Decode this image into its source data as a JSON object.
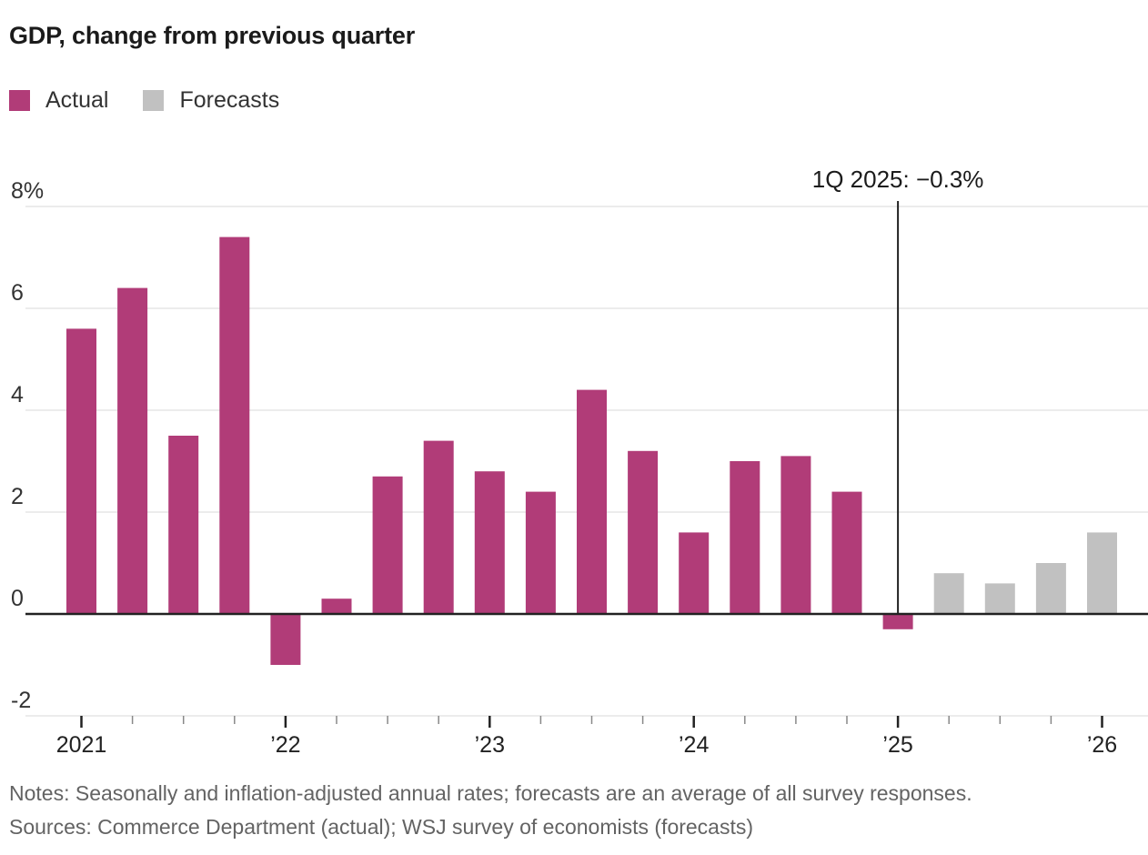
{
  "title": "GDP, change from previous quarter",
  "legend": {
    "actual": {
      "label": "Actual",
      "color": "#b13c78"
    },
    "forecasts": {
      "label": "Forecasts",
      "color": "#c1c1c1"
    }
  },
  "annotation": "1Q 2025: −0.3%",
  "footer": {
    "notes": "Notes: Seasonally and inflation-adjusted annual rates; forecasts are an average of all survey responses.",
    "sources": "Sources: Commerce Department (actual); WSJ survey of economists (forecasts)"
  },
  "chart_data": {
    "type": "bar",
    "title": "GDP, change from previous quarter",
    "x": [
      "2021 Q1",
      "2021 Q2",
      "2021 Q3",
      "2021 Q4",
      "2022 Q1",
      "2022 Q2",
      "2022 Q3",
      "2022 Q4",
      "2023 Q1",
      "2023 Q2",
      "2023 Q3",
      "2023 Q4",
      "2024 Q1",
      "2024 Q2",
      "2024 Q3",
      "2024 Q4",
      "2025 Q1",
      "2025 Q2",
      "2025 Q3",
      "2025 Q4",
      "2026 Q1"
    ],
    "series": [
      {
        "name": "Actual",
        "color": "#b13c78",
        "values": [
          5.6,
          6.4,
          3.5,
          7.4,
          -1.0,
          0.3,
          2.7,
          3.4,
          2.8,
          2.4,
          4.4,
          3.2,
          1.6,
          3.0,
          3.1,
          2.4,
          -0.3,
          null,
          null,
          null,
          null
        ]
      },
      {
        "name": "Forecasts",
        "color": "#c1c1c1",
        "values": [
          null,
          null,
          null,
          null,
          null,
          null,
          null,
          null,
          null,
          null,
          null,
          null,
          null,
          null,
          null,
          null,
          null,
          0.8,
          0.6,
          1.0,
          1.6
        ]
      }
    ],
    "ylim": [
      -2,
      8
    ],
    "y_ticks": [
      8,
      6,
      4,
      2,
      0,
      -2
    ],
    "y_tick_labels": [
      "8%",
      "6",
      "4",
      "2",
      "0",
      "-2"
    ],
    "x_year_labels": [
      {
        "label": "2021",
        "index": 0
      },
      {
        "label": "’22",
        "index": 4
      },
      {
        "label": "’23",
        "index": 8
      },
      {
        "label": "’24",
        "index": 12
      },
      {
        "label": "’25",
        "index": 16
      },
      {
        "label": "’26",
        "index": 20
      }
    ],
    "annotation": {
      "text": "1Q 2025: −0.3%",
      "index": 16
    },
    "grid": true,
    "legend_position": "top-left",
    "xlabel": "",
    "ylabel": ""
  }
}
